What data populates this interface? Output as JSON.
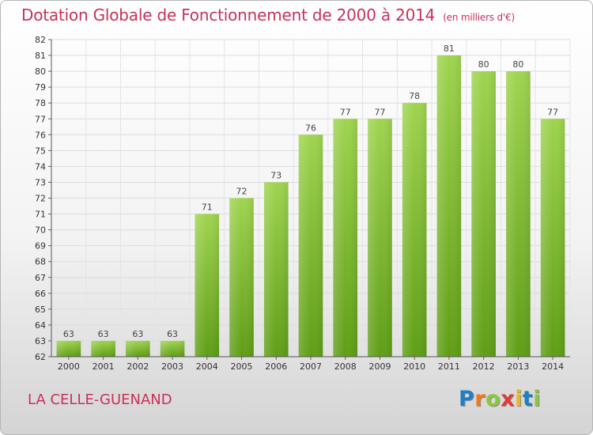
{
  "header": {
    "title": "Dotation Globale de Fonctionnement de 2000 à 2014",
    "unit": "(en milliers d'€)"
  },
  "footer": {
    "commune": "LA CELLE-GUENAND",
    "logo_letters": [
      "P",
      "r",
      "o",
      "x",
      "i",
      "t",
      "i"
    ],
    "logo_colors": [
      "#1f7fc4",
      "#f07a1a",
      "#8dc63f",
      "#e03a3a",
      "#f0b51a",
      "#1f7fc4",
      "#8dc63f"
    ]
  },
  "chart_data": {
    "type": "bar",
    "title": "Dotation Globale de Fonctionnement de 2000 à 2014",
    "subtitle": "(en milliers d'€)",
    "categories": [
      "2000",
      "2001",
      "2002",
      "2003",
      "2004",
      "2005",
      "2006",
      "2007",
      "2008",
      "2009",
      "2010",
      "2011",
      "2012",
      "2013",
      "2014"
    ],
    "values": [
      63,
      63,
      63,
      63,
      71,
      72,
      73,
      76,
      77,
      77,
      78,
      81,
      80,
      80,
      77
    ],
    "ylim": [
      62,
      82
    ],
    "yticks": [
      62,
      63,
      64,
      65,
      66,
      67,
      68,
      69,
      70,
      71,
      72,
      73,
      74,
      75,
      76,
      77,
      78,
      79,
      80,
      81,
      82
    ],
    "grid": true,
    "bar_color": "#7cba2e",
    "data_labels": true
  }
}
